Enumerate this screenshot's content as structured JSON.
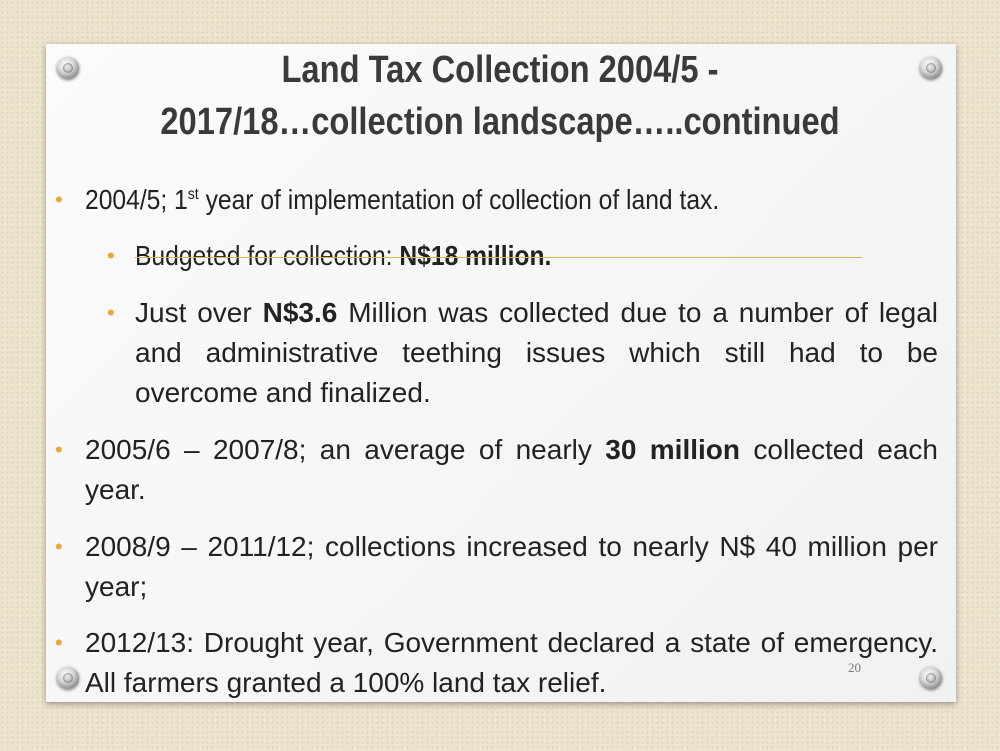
{
  "slide": {
    "title_line1": "Land Tax Collection 2004/5 -",
    "title_line2": "2017/18…collection landscape…..continued",
    "page_number": "20",
    "bullets": {
      "b1": {
        "pre": "2004/5; 1",
        "sup": "st",
        "post": " year of implementation of collection of land tax."
      },
      "b1a": {
        "pre": "Budgeted for collection: ",
        "bold": "N$18 million."
      },
      "b1b": {
        "pre": "Just over ",
        "bold": "N$3.6",
        "post": " Million was collected due to a number of legal and administrative teething issues which still had to be overcome and finalized."
      },
      "b2": {
        "pre": " 2005/6 – 2007/8; an average of nearly ",
        "bold": "30 million",
        "post": " collected each year."
      },
      "b3": {
        "text": " 2008/9 – 2011/12; collections increased to nearly N$ 40 million per year;"
      },
      "b4": {
        "text": "2012/13: Drought year, Government declared a state of emergency. All farmers granted a 100% land tax relief."
      }
    }
  },
  "colors": {
    "bullet": "#e7a73a",
    "title": "#3a3a3a",
    "rule": "#d9b25a"
  }
}
